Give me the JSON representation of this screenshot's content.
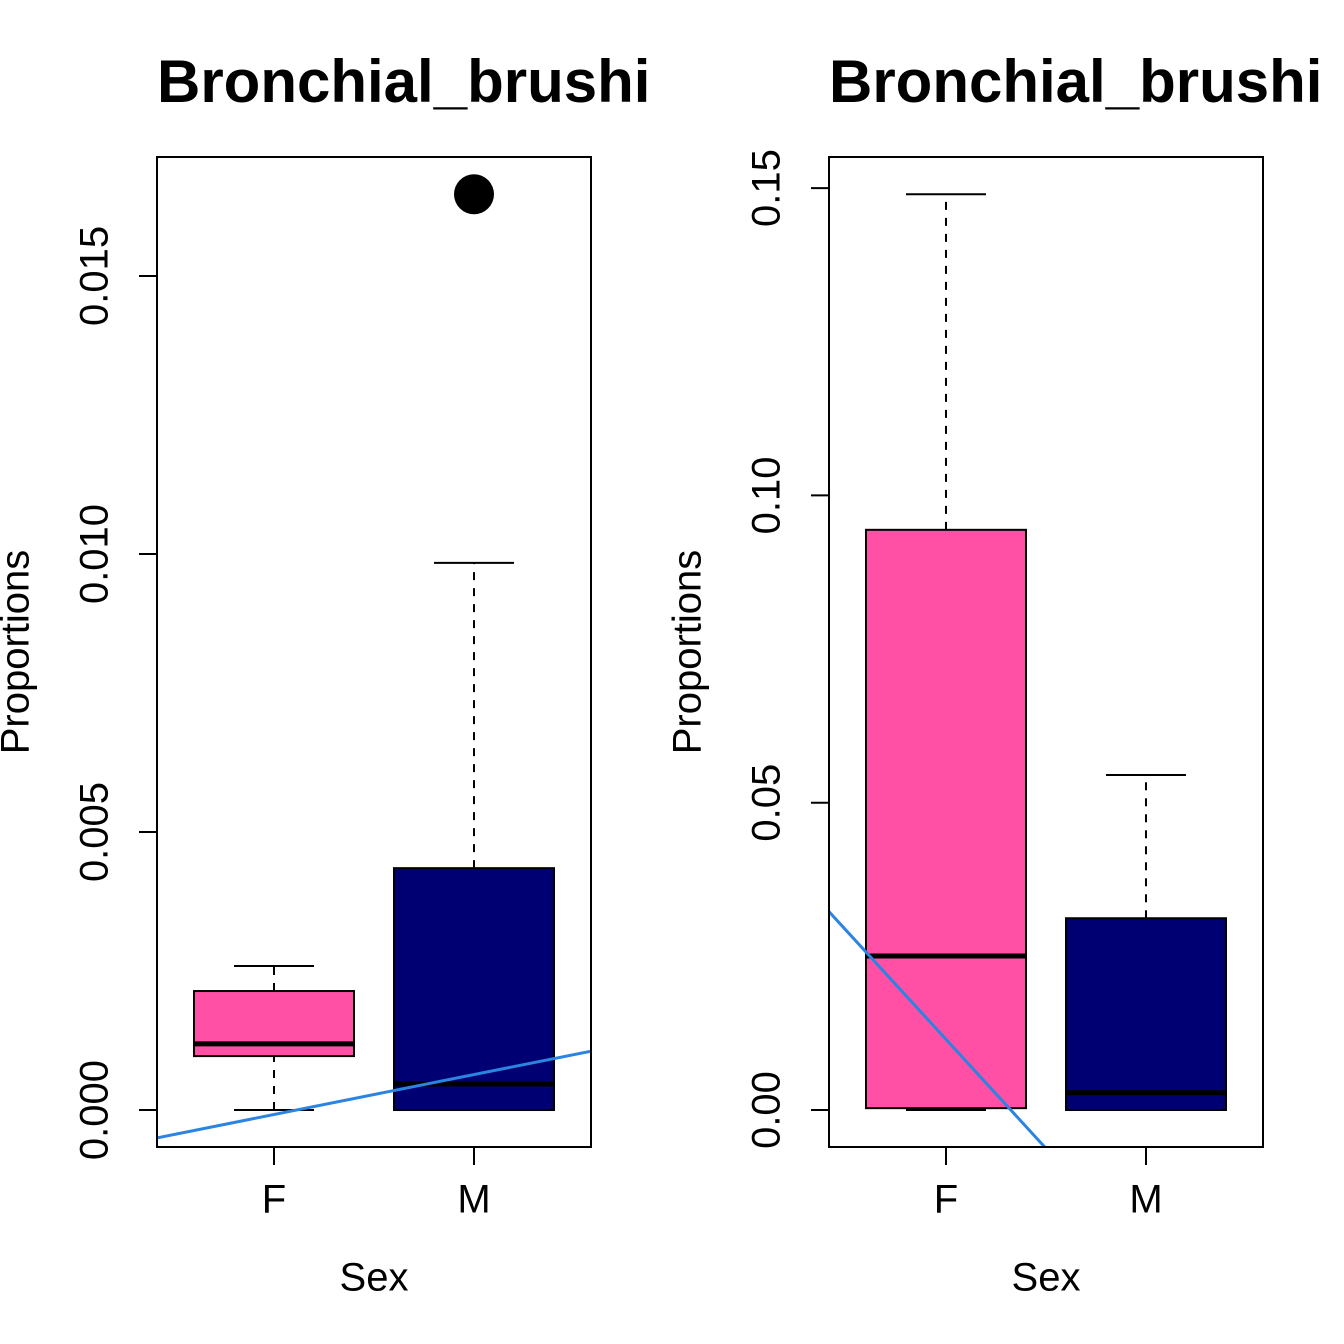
{
  "chart_data": [
    {
      "type": "boxplot",
      "title": "Bronchial_brushi",
      "xlabel": "Sex",
      "ylabel": "Proportions",
      "categories": [
        "F",
        "M"
      ],
      "boxes": [
        {
          "color": "#ff50a6",
          "whislo": 0,
          "q1": 0.00097,
          "median": 0.00119,
          "q3": 0.00214,
          "whishi": 0.00259,
          "outliers": []
        },
        {
          "color": "#000073",
          "whislo": 0,
          "q1": 0,
          "median": 0.00047,
          "q3": 0.00435,
          "whishi": 0.00984,
          "outliers": [
            0.01647
          ]
        }
      ],
      "trend": {
        "color": "#2a84e0",
        "intercept": -0.0008,
        "slope": 0.000719
      },
      "ylim": [
        -0.000665,
        0.01714
      ],
      "yticks": [
        {
          "value": 0,
          "label": "0.000"
        },
        0.005,
        {
          "value": 0.01,
          "label": "0.010"
        },
        0.015
      ]
    },
    {
      "type": "boxplot",
      "title": "Bronchial_brushi",
      "xlabel": "Sex",
      "ylabel": "Proportions",
      "categories": [
        "F",
        "M"
      ],
      "boxes": [
        {
          "color": "#ff50a6",
          "whislo": 0,
          "q1": 0.0003,
          "median": 0.02506,
          "q3": 0.0944,
          "whishi": 0.149,
          "outliers": []
        },
        {
          "color": "#000073",
          "whislo": 0,
          "q1": 0,
          "median": 0.0028,
          "q3": 0.0312,
          "whishi": 0.0545,
          "outliers": []
        }
      ],
      "trend": {
        "color": "#2a84e0",
        "intercept": 0.047,
        "slope": -0.0355
      },
      "ylim": [
        -0.00602,
        0.15506
      ],
      "yticks": [
        {
          "value": 0,
          "label": "0.00"
        },
        0.05,
        {
          "value": 0.1,
          "label": "0.10"
        },
        0.15
      ]
    }
  ]
}
